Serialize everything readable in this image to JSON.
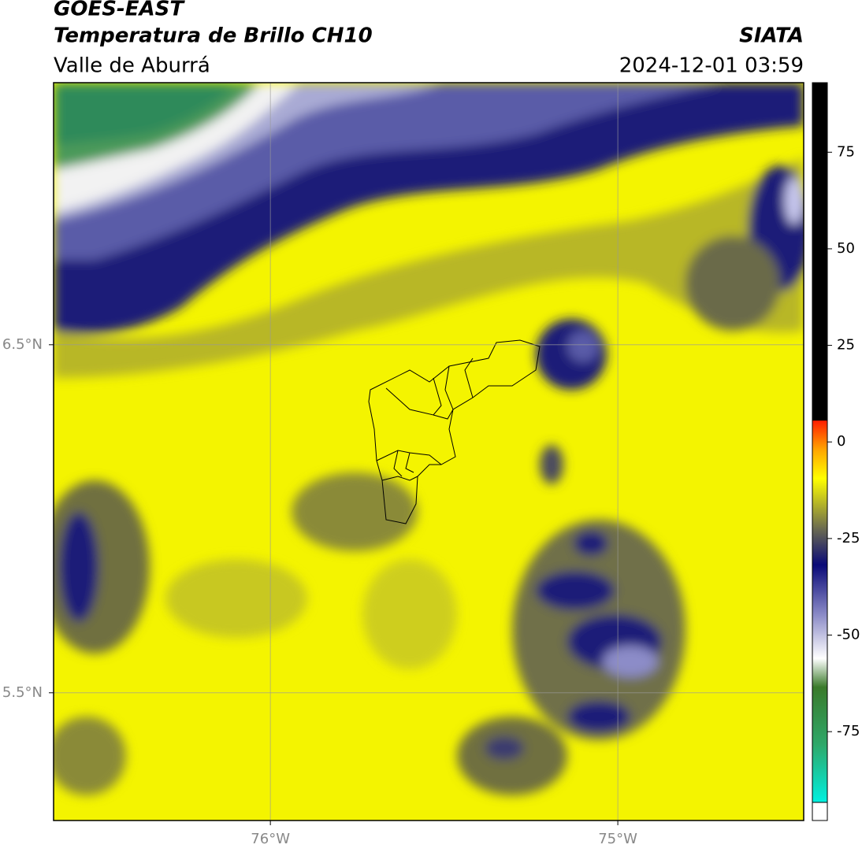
{
  "header": {
    "title": "GOES-EAST",
    "subtitle": "Temperatura de Brillo CH10",
    "region": "Valle de Aburrá",
    "source": "SIATA",
    "datetime": "2024-12-01 03:59"
  },
  "map": {
    "xlim": [
      -76.624,
      -74.465
    ],
    "ylim": [
      5.133,
      7.253
    ],
    "xticks": [
      {
        "value": -76,
        "label": "76°W"
      },
      {
        "value": -75,
        "label": "75°W"
      }
    ],
    "yticks": [
      {
        "value": 6.5,
        "label": "6.5°N"
      },
      {
        "value": 5.5,
        "label": "5.5°N"
      }
    ],
    "grid": true
  },
  "colorbar": {
    "lim": [
      -98,
      93
    ],
    "ticks": [
      75,
      50,
      25,
      0,
      -25,
      -50,
      -75
    ]
  }
}
